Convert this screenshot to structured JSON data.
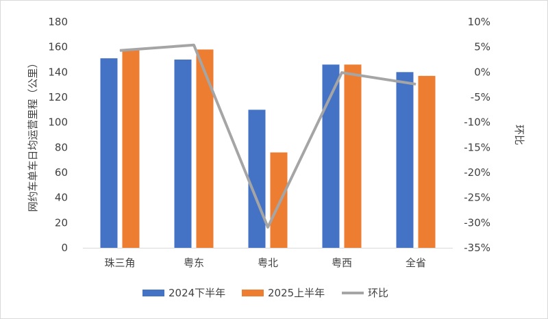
{
  "chart_data": {
    "type": "bar",
    "title": "",
    "xlabel": "",
    "ylabel": "网约车单车日均运营里程（公里）",
    "y2label": "环比",
    "categories": [
      "珠三角",
      "粤东",
      "粤北",
      "粤西",
      "全省"
    ],
    "ylim": [
      0,
      180
    ],
    "yticks": [
      "0",
      "20",
      "40",
      "60",
      "80",
      "100",
      "120",
      "140",
      "160",
      "180"
    ],
    "y2lim": [
      -35,
      10
    ],
    "y2ticks": [
      "-35%",
      "-30%",
      "-25%",
      "-20%",
      "-15%",
      "-10%",
      "-5%",
      "0%",
      "5%",
      "10%"
    ],
    "grid": false,
    "legend_position": "bottom",
    "series": [
      {
        "name": "2024下半年",
        "kind": "bar",
        "axis": "left",
        "color": "#4472c4",
        "values": [
          151,
          150,
          110,
          146,
          140
        ]
      },
      {
        "name": "2025上半年",
        "kind": "bar",
        "axis": "right_none",
        "color": "#ed7d31",
        "values": [
          158,
          158,
          76,
          146,
          137
        ]
      },
      {
        "name": "环比",
        "kind": "line",
        "axis": "right",
        "color": "#a5a5a5",
        "values": [
          4.3,
          5.4,
          -30.9,
          -0.1,
          -2.4
        ]
      }
    ]
  }
}
